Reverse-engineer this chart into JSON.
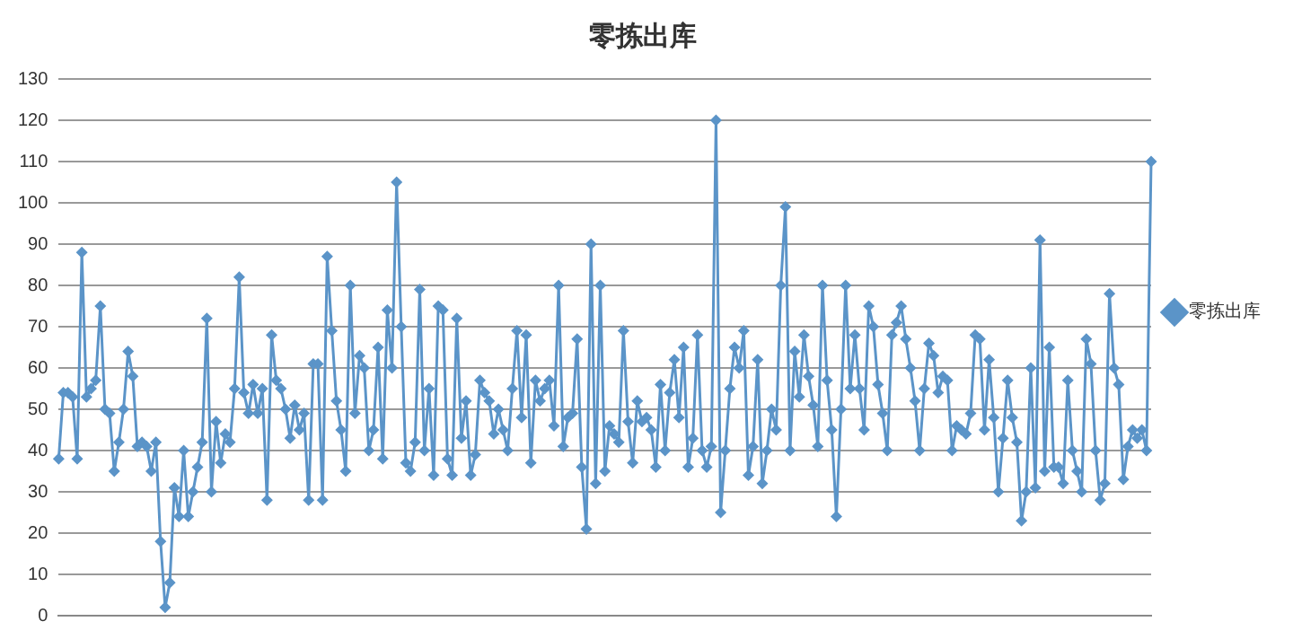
{
  "chart_data": {
    "type": "line",
    "title": "零拣出库",
    "categories": [
      null,
      null,
      null,
      null,
      null,
      null,
      null,
      null,
      null,
      null,
      null,
      null,
      null,
      null,
      null,
      null,
      null,
      null,
      null,
      null,
      null,
      null,
      null,
      null,
      null,
      null,
      null,
      null,
      null,
      null,
      null,
      null,
      null,
      null,
      null,
      null,
      null,
      null,
      null,
      null,
      null,
      null,
      null,
      null,
      null,
      null,
      null,
      null,
      null,
      null,
      null,
      null,
      null,
      null,
      null,
      null,
      null,
      null,
      null,
      null,
      null,
      null,
      null,
      null,
      null,
      null,
      null,
      null,
      null,
      null,
      null,
      null,
      null,
      null,
      null,
      null,
      null,
      null,
      null,
      null,
      null,
      null,
      null,
      null,
      null,
      null,
      null,
      null,
      null,
      null,
      null,
      null,
      null,
      null,
      null,
      null,
      null,
      null,
      null,
      null,
      null,
      null,
      null,
      null,
      null,
      null,
      null,
      null,
      null,
      null,
      null,
      null,
      null,
      null,
      null,
      null,
      null,
      null,
      null,
      null,
      null,
      null,
      null,
      null,
      null,
      null,
      null,
      null,
      null,
      null,
      null,
      null,
      null,
      null,
      null,
      null,
      null,
      null,
      null,
      null,
      null,
      null,
      null,
      null,
      null,
      null,
      null,
      null,
      null,
      null,
      null,
      null,
      null,
      null,
      null,
      null,
      null,
      null,
      null,
      null,
      null,
      null,
      null,
      null,
      null,
      null,
      null,
      null,
      null,
      null,
      null,
      null,
      null,
      null,
      null,
      null,
      null,
      null,
      null,
      null,
      null,
      null,
      null,
      null,
      null,
      null,
      null,
      null,
      null,
      null,
      null,
      null,
      null,
      null,
      null,
      null,
      null,
      null,
      null,
      null,
      null,
      null,
      null,
      null,
      null,
      null,
      null,
      null,
      null,
      null,
      null,
      null,
      null,
      null,
      null,
      null,
      null,
      null,
      null,
      null,
      null,
      null,
      null,
      null,
      null,
      null,
      null,
      null,
      null,
      null,
      null,
      null,
      null,
      null,
      null,
      null,
      null
    ],
    "series": [
      {
        "name": "零拣出库",
        "color": "#5b94c8",
        "values": [
          38,
          54,
          54,
          53,
          38,
          88,
          53,
          55,
          57,
          75,
          50,
          49,
          35,
          42,
          50,
          64,
          58,
          41,
          42,
          41,
          35,
          42,
          18,
          2,
          8,
          31,
          24,
          40,
          24,
          30,
          36,
          42,
          72,
          30,
          47,
          37,
          44,
          42,
          55,
          82,
          54,
          49,
          56,
          49,
          55,
          28,
          68,
          57,
          55,
          50,
          43,
          51,
          45,
          49,
          28,
          61,
          61,
          28,
          87,
          69,
          52,
          45,
          35,
          80,
          49,
          63,
          60,
          40,
          45,
          65,
          38,
          74,
          60,
          105,
          70,
          37,
          35,
          42,
          79,
          40,
          55,
          34,
          75,
          74,
          38,
          34,
          72,
          43,
          52,
          34,
          39,
          57,
          54,
          52,
          44,
          50,
          45,
          40,
          55,
          69,
          48,
          68,
          37,
          57,
          52,
          55,
          57,
          46,
          80,
          41,
          48,
          49,
          67,
          36,
          21,
          90,
          32,
          80,
          35,
          46,
          44,
          42,
          69,
          47,
          37,
          52,
          47,
          48,
          45,
          36,
          56,
          40,
          54,
          62,
          48,
          65,
          36,
          43,
          68,
          40,
          36,
          41,
          120,
          25,
          40,
          55,
          65,
          60,
          69,
          34,
          41,
          62,
          32,
          40,
          50,
          45,
          80,
          99,
          40,
          64,
          53,
          68,
          58,
          51,
          41,
          80,
          57,
          45,
          24,
          50,
          80,
          55,
          68,
          55,
          45,
          75,
          70,
          56,
          49,
          40,
          68,
          71,
          75,
          67,
          60,
          52,
          40,
          55,
          66,
          63,
          54,
          58,
          57,
          40,
          46,
          45,
          44,
          49,
          68,
          67,
          45,
          62,
          48,
          30,
          43,
          57,
          48,
          42,
          23,
          30,
          60,
          31,
          91,
          35,
          65,
          36,
          36,
          32,
          57,
          40,
          35,
          30,
          67,
          61,
          40,
          28,
          32,
          78,
          60,
          56,
          33,
          41,
          45,
          43,
          45,
          40,
          110
        ]
      }
    ],
    "ylim": [
      0,
      130
    ],
    "yticks": [
      0,
      10,
      20,
      30,
      40,
      50,
      60,
      70,
      80,
      90,
      100,
      110,
      120,
      130
    ],
    "grid": "y",
    "legend": "right",
    "marker": "diamond",
    "line_style": "solid",
    "tick_labels": "y"
  }
}
